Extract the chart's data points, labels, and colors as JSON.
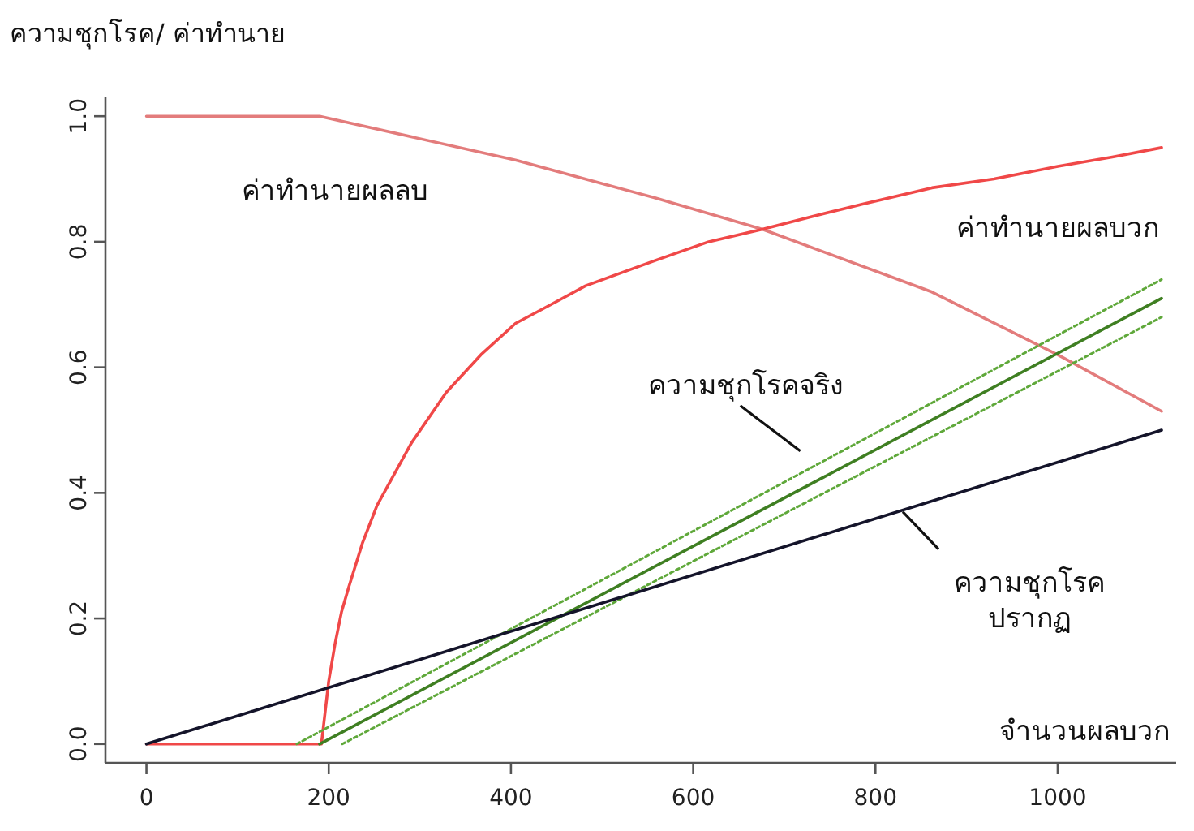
{
  "chart_data": {
    "type": "line",
    "ylabel": "ความชุกโรค/ ค่าทำนาย",
    "xlabel": "จำนวนผลบวก",
    "xlim": [
      -45,
      1130
    ],
    "ylim": [
      -0.03,
      1.03
    ],
    "xticks": [
      0,
      200,
      400,
      600,
      800,
      1000
    ],
    "yticks": [
      {
        "value": 0,
        "label": "0.0"
      },
      0.2,
      0.4,
      0.6,
      0.8,
      {
        "value": 1,
        "label": "1.0"
      }
    ],
    "marker": "none",
    "series": [
      {
        "color": "#e37c7c",
        "x": [
          0,
          190,
          405,
          558,
          676,
          862,
          1000,
          1114
        ],
        "values": [
          1,
          1,
          0.93,
          0.87,
          0.82,
          0.72,
          0.62,
          0.53
        ]
      },
      {
        "color": "#f04848",
        "x": [
          0,
          192,
          196,
          200,
          207,
          214,
          222,
          237,
          253,
          272,
          291,
          310,
          329,
          367,
          405,
          444,
          482,
          520,
          558,
          617,
          676,
          730,
          786,
          862,
          930,
          1000,
          1060,
          1114
        ],
        "values": [
          0,
          0,
          0.05,
          0.1,
          0.16,
          0.21,
          0.25,
          0.32,
          0.38,
          0.43,
          0.48,
          0.52,
          0.56,
          0.62,
          0.67,
          0.7,
          0.73,
          0.75,
          0.77,
          0.8,
          0.82,
          0.84,
          0.86,
          0.886,
          0.9,
          0.92,
          0.935,
          0.95
        ]
      },
      {
        "color": "#3f7f22",
        "x": [
          190,
          1114
        ],
        "values": [
          0,
          0.71
        ]
      },
      {
        "color": "#5fa83a",
        "line_style": "dotted",
        "x": [
          165,
          1114
        ],
        "values": [
          0,
          0.74
        ]
      },
      {
        "color": "#5fa83a",
        "line_style": "dotted",
        "x": [
          215,
          1114
        ],
        "values": [
          0,
          0.68
        ]
      },
      {
        "color": "#14142a",
        "x": [
          0,
          1114
        ],
        "values": [
          0,
          0.5
        ]
      }
    ],
    "annotations": [
      "ค่าทำนายผลลบ",
      "ค่าทำนายผลบวก",
      "ความชุกโรคจริง",
      {
        "text": "ความชุกโรค\nปรากฏ",
        "x": 830,
        "y": 0.37
      }
    ]
  }
}
